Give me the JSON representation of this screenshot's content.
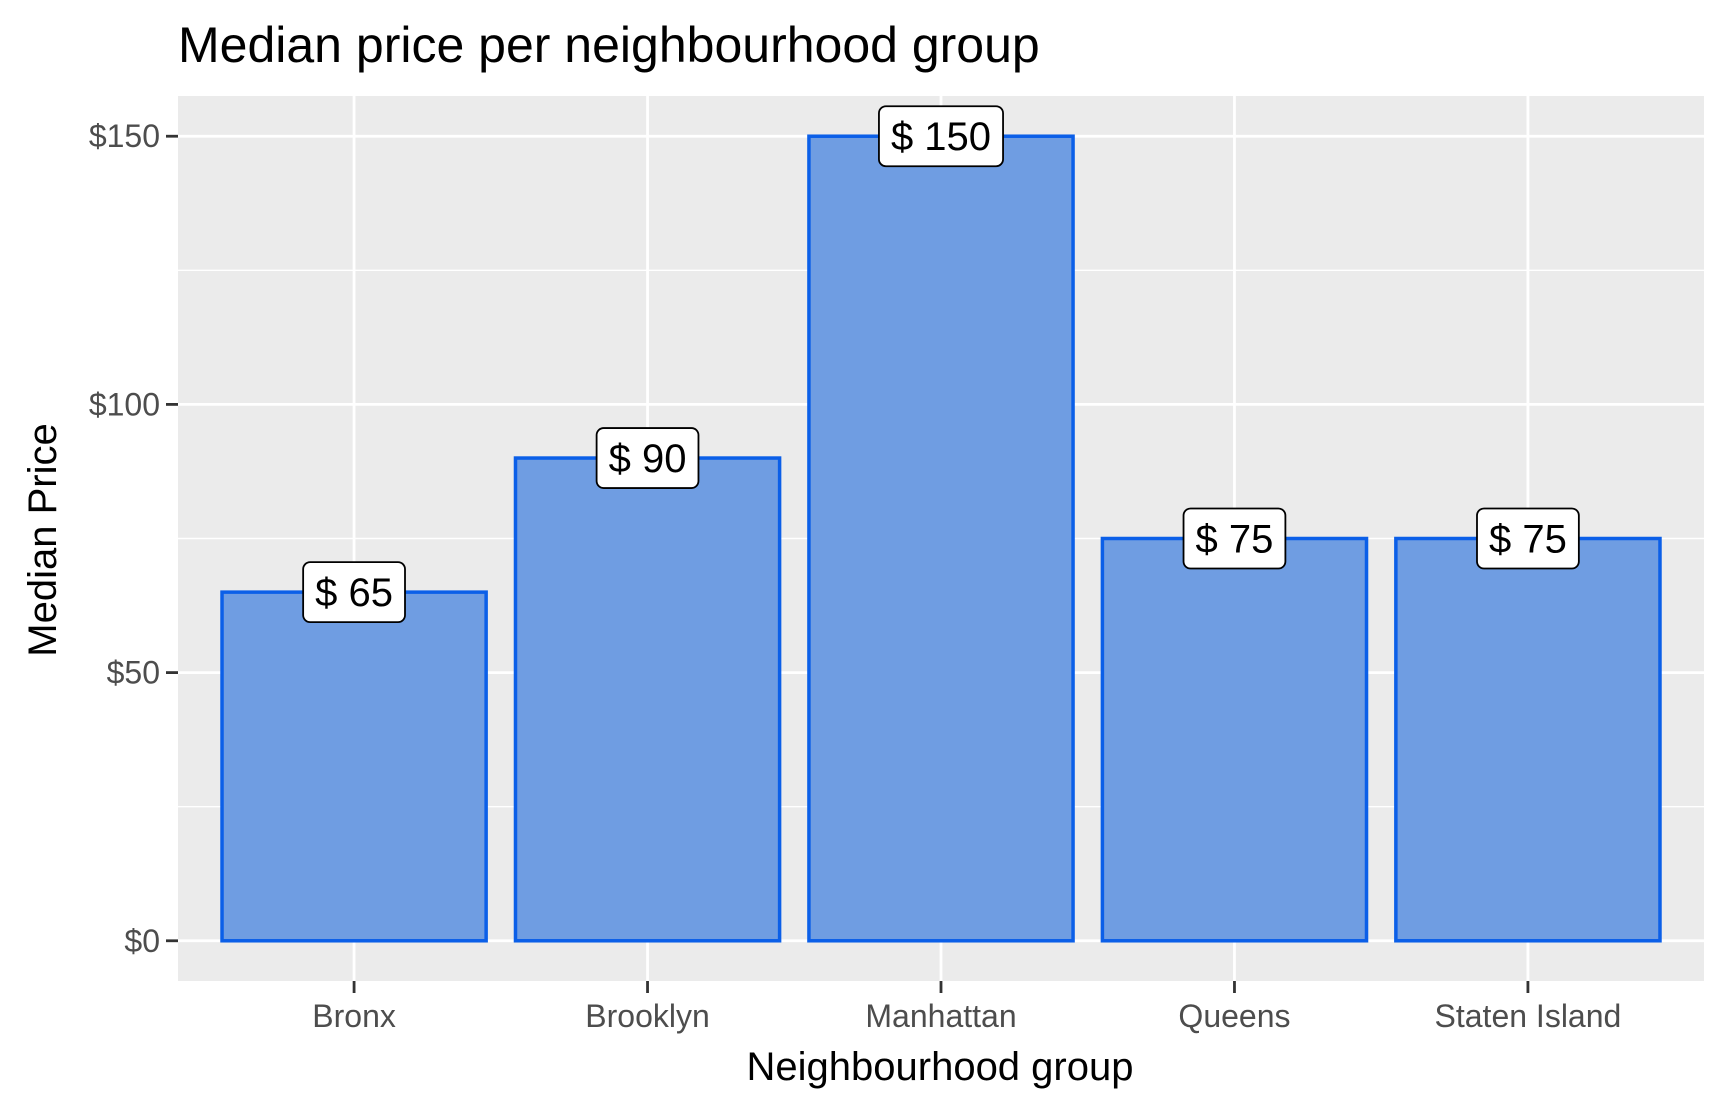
{
  "chart_data": {
    "type": "bar",
    "title": "Median price per neighbourhood group",
    "xlabel": "Neighbourhood group",
    "ylabel": "Median Price",
    "categories": [
      "Bronx",
      "Brooklyn",
      "Manhattan",
      "Queens",
      "Staten Island"
    ],
    "values": [
      65,
      90,
      150,
      75,
      75
    ],
    "data_labels": [
      "$ 65",
      "$ 90",
      "$ 150",
      "$ 75",
      "$ 75"
    ],
    "y_ticks": [
      0,
      50,
      100,
      150
    ],
    "y_tick_labels": [
      "$0",
      "$50",
      "$100",
      "$150"
    ],
    "ylim": [
      -7.5,
      157.5
    ],
    "grid": true,
    "legend": "none",
    "colors": {
      "bar_fill": "#6f9de2",
      "bar_border": "#0b5fe8",
      "panel_background": "#ebebeb",
      "grid": "#ffffff"
    }
  }
}
